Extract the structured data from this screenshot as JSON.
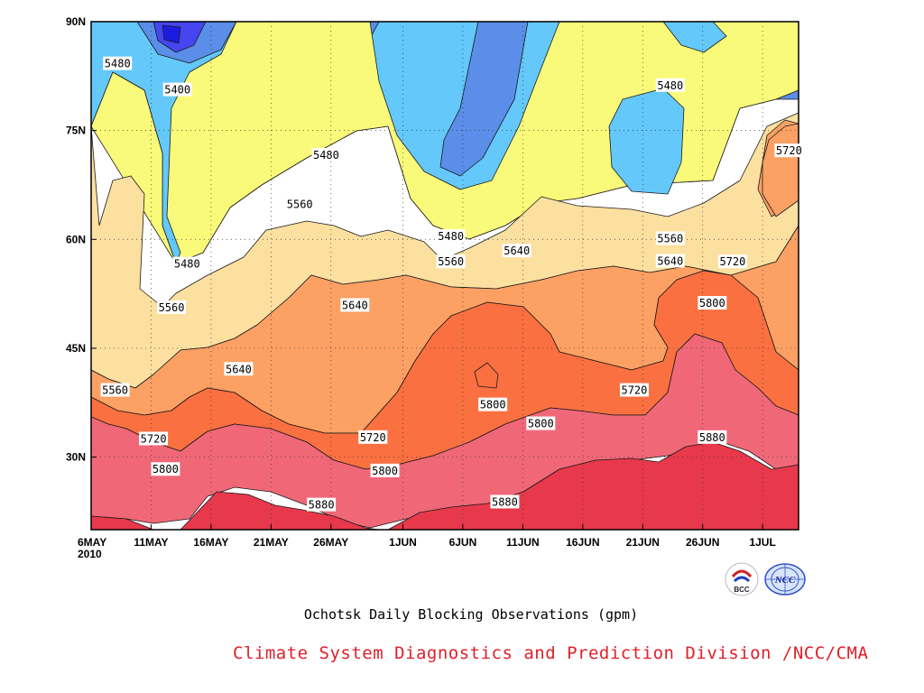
{
  "page": {
    "title": "Ochotsk Daily Blocking Observations (gpm)",
    "credit": "Climate System Diagnostics and Prediction Division /NCC/CMA",
    "credit_color": "#e0202a"
  },
  "logos": [
    {
      "name": "BCC",
      "icon": "bcc-logo-icon"
    },
    {
      "name": "NCC",
      "icon": "ncc-logo-icon"
    }
  ],
  "chart_data": {
    "type": "heatmap",
    "subtype": "time-latitude contour (filled)",
    "title": "Ochotsk Daily Blocking Observations (gpm)",
    "x_axis": {
      "start": "6MAY2010",
      "end": "4JUL2010",
      "tick_labels": [
        "6MAY",
        "11MAY",
        "16MAY",
        "21MAY",
        "26MAY",
        "1JUN",
        "6JUN",
        "11JUN",
        "16JUN",
        "21JUN",
        "26JUN",
        "1JUL"
      ],
      "tick_days": [
        0,
        5,
        10,
        15,
        20,
        26,
        31,
        36,
        41,
        46,
        51,
        56
      ],
      "year_label": "2010",
      "range_days": [
        0,
        59
      ]
    },
    "y_axis": {
      "tick_labels": [
        "30N",
        "45N",
        "60N",
        "75N",
        "90N"
      ],
      "tick_values": [
        30,
        45,
        60,
        75,
        90
      ],
      "range": [
        20,
        90
      ]
    },
    "grid": true,
    "grid_style": "dotted",
    "levels": [
      5400,
      5480,
      5560,
      5640,
      5720,
      5800,
      5880
    ],
    "fill_colors": {
      "lt5320": "#1c1ce0",
      "5320-5400": "#4646f0",
      "5400-5480": "#5a8ee8",
      "5480-5560": "#64c8fa",
      "5560-5640": "#fafa7a",
      "5640-5720": "#fce0a0",
      "5720-5800": "#fca064",
      "5800-5880": "#fa7040",
      "5880-5960": "#f06878",
      "gt5960": "#e8384c"
    },
    "contour_labels": [
      {
        "value": "5480",
        "day": 2.2,
        "lat": 84.2
      },
      {
        "value": "5400",
        "day": 7.2,
        "lat": 80.6
      },
      {
        "value": "5480",
        "day": 19.6,
        "lat": 71.6
      },
      {
        "value": "5480",
        "day": 30.0,
        "lat": 60.4
      },
      {
        "value": "5480",
        "day": 48.3,
        "lat": 81.2
      },
      {
        "value": "5720",
        "day": 58.2,
        "lat": 72.2
      },
      {
        "value": "5560",
        "day": 17.4,
        "lat": 64.8
      },
      {
        "value": "5480",
        "day": 8.0,
        "lat": 56.6
      },
      {
        "value": "5560",
        "day": 48.3,
        "lat": 60.1
      },
      {
        "value": "5640",
        "day": 35.5,
        "lat": 58.4
      },
      {
        "value": "5560",
        "day": 30.0,
        "lat": 56.9
      },
      {
        "value": "5640",
        "day": 48.3,
        "lat": 57.0
      },
      {
        "value": "5720",
        "day": 53.5,
        "lat": 56.9
      },
      {
        "value": "5560",
        "day": 6.7,
        "lat": 50.6
      },
      {
        "value": "5640",
        "day": 22.0,
        "lat": 50.9
      },
      {
        "value": "5800",
        "day": 51.8,
        "lat": 51.2
      },
      {
        "value": "5640",
        "day": 12.3,
        "lat": 42.1
      },
      {
        "value": "5560",
        "day": 2.0,
        "lat": 39.2
      },
      {
        "value": "5720",
        "day": 45.3,
        "lat": 39.2
      },
      {
        "value": "5800",
        "day": 33.5,
        "lat": 37.2
      },
      {
        "value": "5800",
        "day": 37.5,
        "lat": 34.6
      },
      {
        "value": "5720",
        "day": 5.2,
        "lat": 32.5
      },
      {
        "value": "5720",
        "day": 23.5,
        "lat": 32.7
      },
      {
        "value": "5880",
        "day": 51.8,
        "lat": 32.7
      },
      {
        "value": "5800",
        "day": 6.2,
        "lat": 28.3
      },
      {
        "value": "5800",
        "day": 24.5,
        "lat": 28.1
      },
      {
        "value": "5880",
        "day": 19.2,
        "lat": 23.4
      },
      {
        "value": "5880",
        "day": 34.5,
        "lat": 23.8
      }
    ]
  }
}
